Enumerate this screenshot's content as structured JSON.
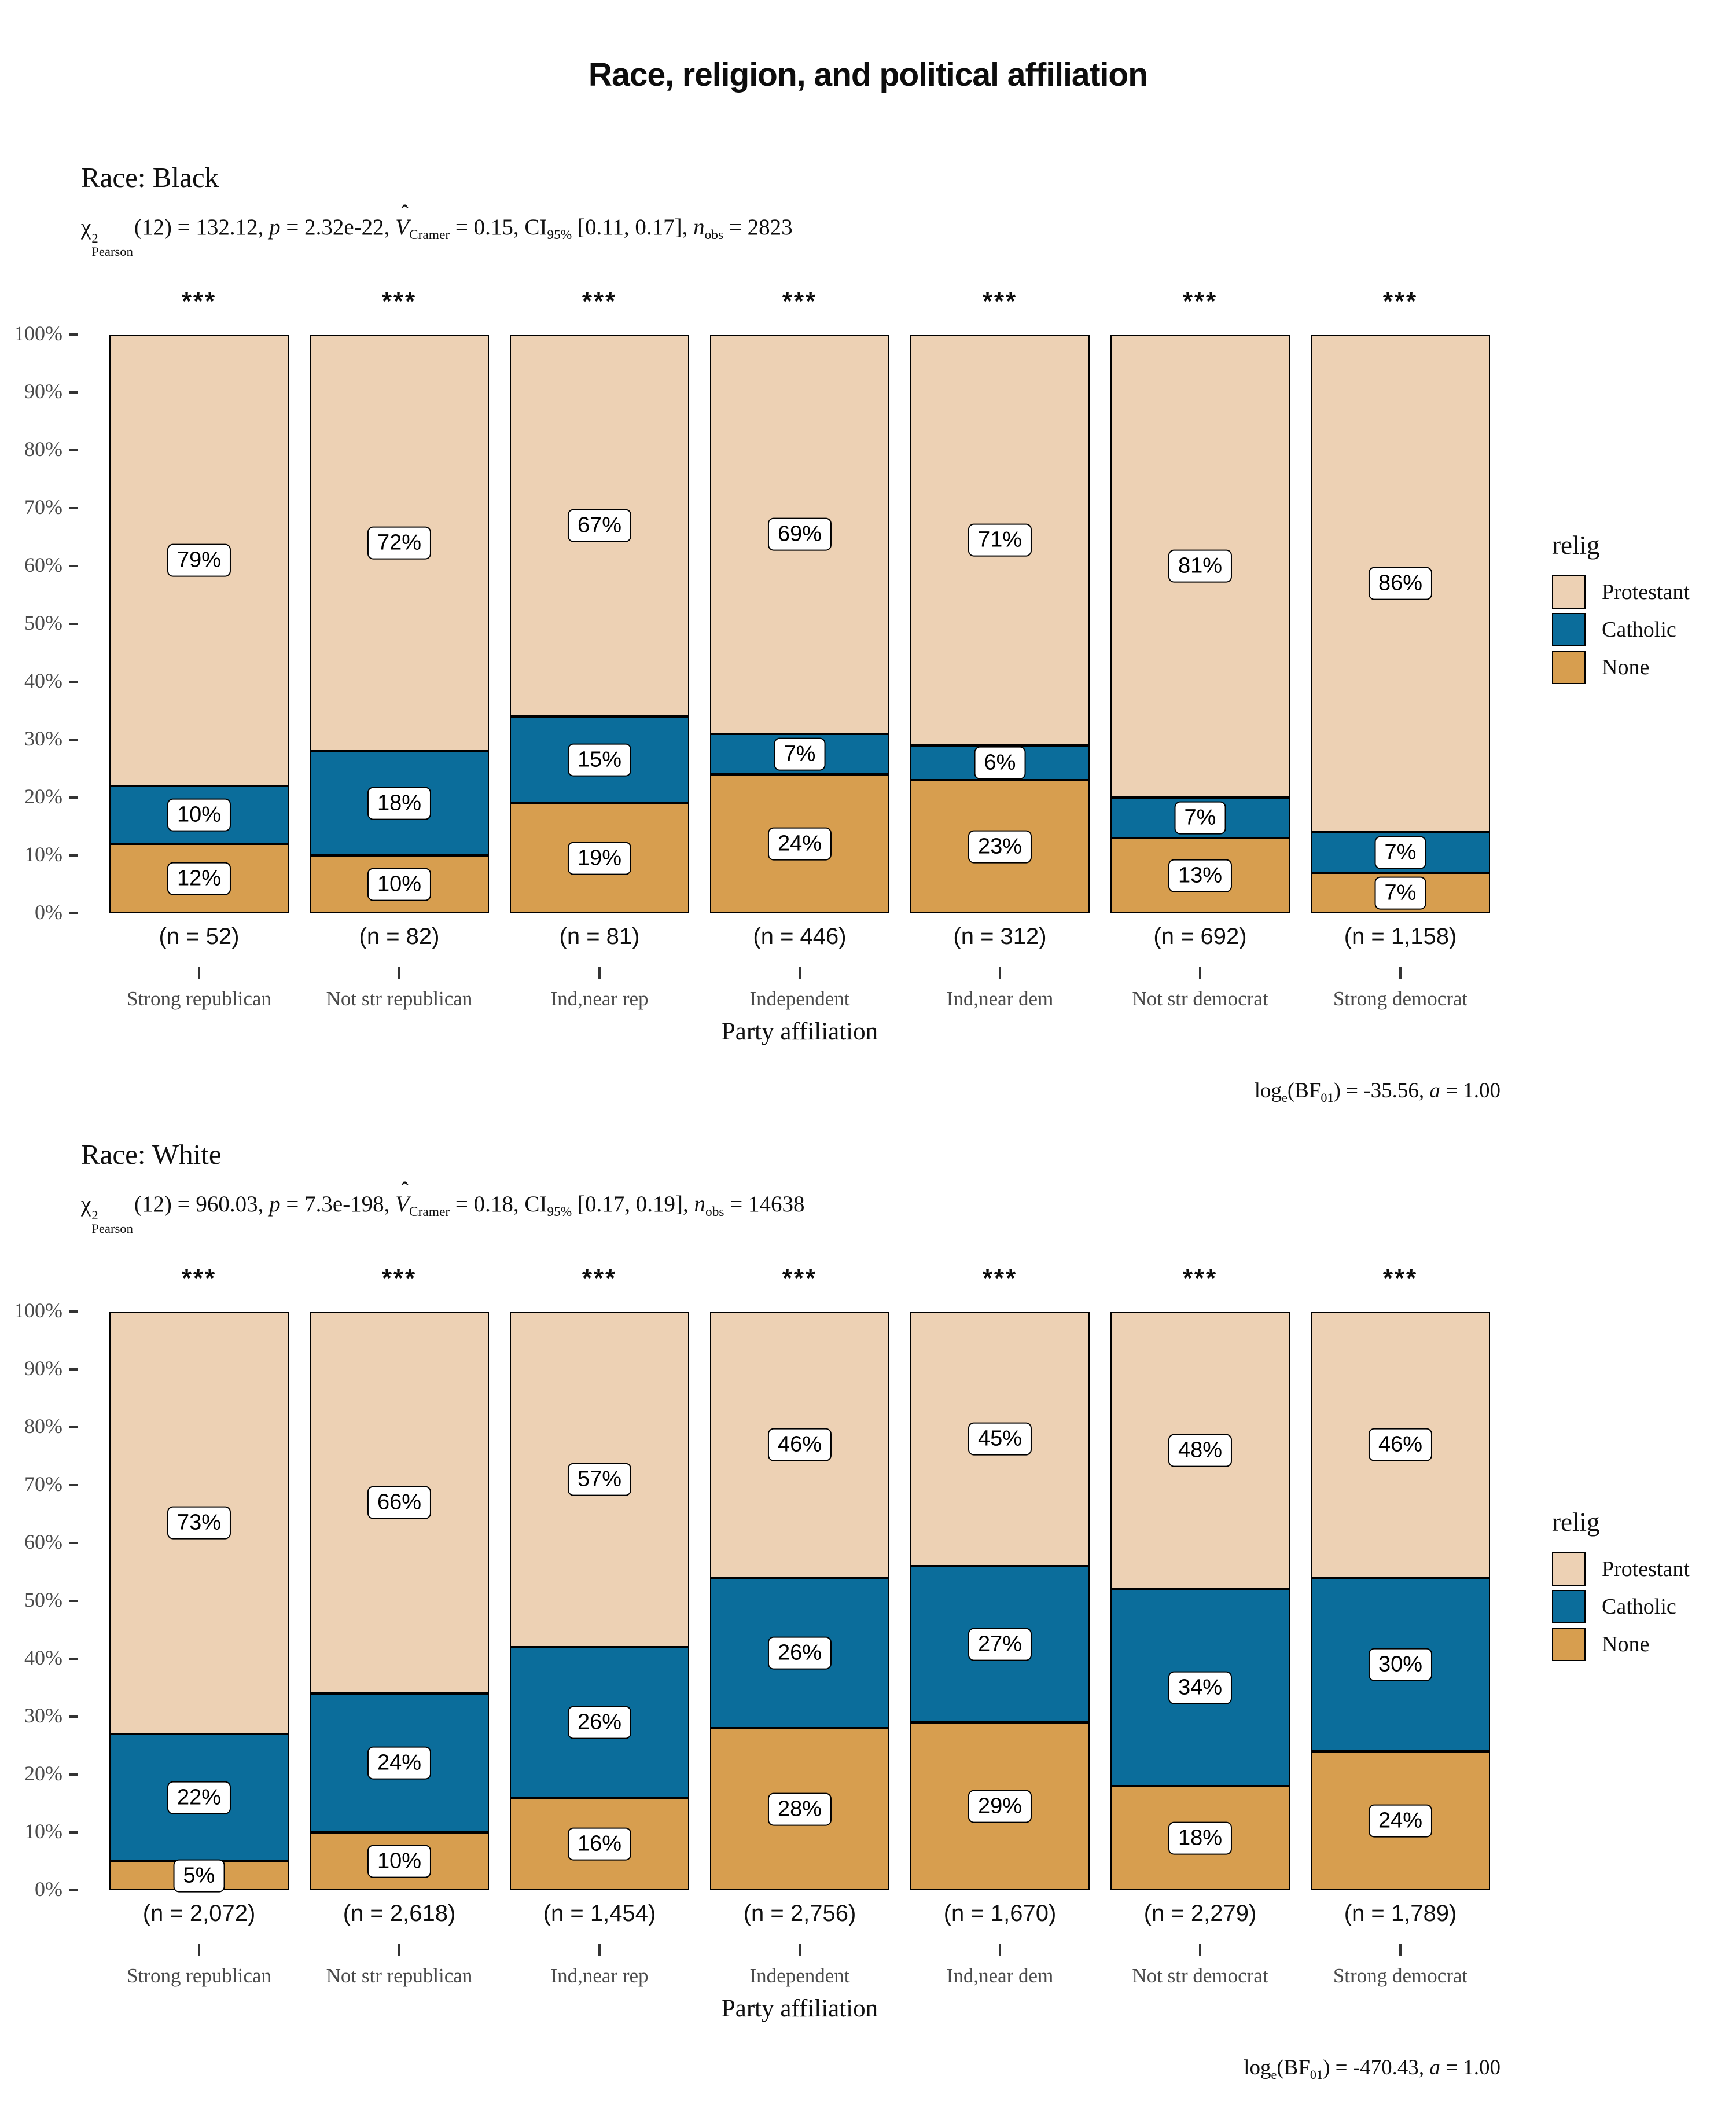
{
  "title": "Race, religion, and political affiliation",
  "y_ticks": [
    "0%",
    "10%",
    "20%",
    "30%",
    "40%",
    "50%",
    "60%",
    "70%",
    "80%",
    "90%",
    "100%"
  ],
  "x_axis_title": "Party affiliation",
  "legend": {
    "title": "relig",
    "items": [
      {
        "label": "Protestant",
        "color": "#EDD1B4"
      },
      {
        "label": "Catholic",
        "color": "#0B6D9B"
      },
      {
        "label": "None",
        "color": "#D79E4F"
      }
    ]
  },
  "chart_data": [
    {
      "type": "bar",
      "stacked": true,
      "percent_scale": true,
      "ylim": [
        0,
        100
      ],
      "grid": false,
      "legend_position": "right",
      "facet_title": "Race: Black",
      "xlabel": "Party affiliation",
      "ylabel": "",
      "categories": [
        "Strong republican",
        "Not str republican",
        "Ind,near rep",
        "Independent",
        "Ind,near dem",
        "Not str democrat",
        "Strong democrat"
      ],
      "n_labels": [
        "(n = 52)",
        "(n = 82)",
        "(n = 81)",
        "(n = 446)",
        "(n = 312)",
        "(n = 692)",
        "(n = 1,158)"
      ],
      "significance": [
        "***",
        "***",
        "***",
        "***",
        "***",
        "***",
        "***"
      ],
      "series": [
        {
          "name": "Protestant",
          "color": "#EDD1B4",
          "values": [
            79,
            72,
            67,
            69,
            71,
            81,
            86
          ]
        },
        {
          "name": "Catholic",
          "color": "#0B6D9B",
          "values": [
            10,
            18,
            15,
            7,
            6,
            7,
            7
          ]
        },
        {
          "name": "None",
          "color": "#D79E4F",
          "values": [
            12,
            10,
            19,
            24,
            23,
            13,
            7
          ]
        }
      ],
      "stats_segments": [
        {
          "t": "supsub",
          "base": "χ",
          "sup": "2",
          "sub": "Pearson"
        },
        {
          "t": "txt",
          "v": "(12) = 132.12, "
        },
        {
          "t": "i",
          "v": "p"
        },
        {
          "t": "txt",
          "v": " = 2.32e-22, "
        },
        {
          "t": "hat",
          "v": "V",
          "mark": "ˆ"
        },
        {
          "t": "sub",
          "v": "Cramer"
        },
        {
          "t": "txt",
          "v": " = 0.15, CI"
        },
        {
          "t": "sub",
          "v": "95%"
        },
        {
          "t": "txt",
          "v": " [0.11, 0.17], "
        },
        {
          "t": "i",
          "v": "n"
        },
        {
          "t": "sub",
          "v": "obs"
        },
        {
          "t": "txt",
          "v": " = 2823"
        }
      ],
      "caption_segments": [
        {
          "t": "txt",
          "v": "log"
        },
        {
          "t": "sub",
          "v": "e"
        },
        {
          "t": "txt",
          "v": "(BF"
        },
        {
          "t": "sub",
          "v": "01"
        },
        {
          "t": "txt",
          "v": ") = -35.56, "
        },
        {
          "t": "i",
          "v": "a"
        },
        {
          "t": "txt",
          "v": " = 1.00"
        }
      ]
    },
    {
      "type": "bar",
      "stacked": true,
      "percent_scale": true,
      "ylim": [
        0,
        100
      ],
      "grid": false,
      "legend_position": "right",
      "facet_title": "Race: White",
      "xlabel": "Party affiliation",
      "ylabel": "",
      "categories": [
        "Strong republican",
        "Not str republican",
        "Ind,near rep",
        "Independent",
        "Ind,near dem",
        "Not str democrat",
        "Strong democrat"
      ],
      "n_labels": [
        "(n = 2,072)",
        "(n = 2,618)",
        "(n = 1,454)",
        "(n = 2,756)",
        "(n = 1,670)",
        "(n = 2,279)",
        "(n = 1,789)"
      ],
      "significance": [
        "***",
        "***",
        "***",
        "***",
        "***",
        "***",
        "***"
      ],
      "series": [
        {
          "name": "Protestant",
          "color": "#EDD1B4",
          "values": [
            73,
            66,
            57,
            46,
            45,
            48,
            46
          ]
        },
        {
          "name": "Catholic",
          "color": "#0B6D9B",
          "values": [
            22,
            24,
            26,
            26,
            27,
            34,
            30
          ]
        },
        {
          "name": "None",
          "color": "#D79E4F",
          "values": [
            5,
            10,
            16,
            28,
            29,
            18,
            24
          ]
        }
      ],
      "stats_segments": [
        {
          "t": "supsub",
          "base": "χ",
          "sup": "2",
          "sub": "Pearson"
        },
        {
          "t": "txt",
          "v": "(12) = 960.03, "
        },
        {
          "t": "i",
          "v": "p"
        },
        {
          "t": "txt",
          "v": " = 7.3e-198, "
        },
        {
          "t": "hat",
          "v": "V",
          "mark": "ˆ"
        },
        {
          "t": "sub",
          "v": "Cramer"
        },
        {
          "t": "txt",
          "v": " = 0.18, CI"
        },
        {
          "t": "sub",
          "v": "95%"
        },
        {
          "t": "txt",
          "v": " [0.17, 0.19], "
        },
        {
          "t": "i",
          "v": "n"
        },
        {
          "t": "sub",
          "v": "obs"
        },
        {
          "t": "txt",
          "v": " = 14638"
        }
      ],
      "caption_segments": [
        {
          "t": "txt",
          "v": "log"
        },
        {
          "t": "sub",
          "v": "e"
        },
        {
          "t": "txt",
          "v": "(BF"
        },
        {
          "t": "sub",
          "v": "01"
        },
        {
          "t": "txt",
          "v": ") = -470.43, "
        },
        {
          "t": "i",
          "v": "a"
        },
        {
          "t": "txt",
          "v": " = 1.00"
        }
      ]
    }
  ]
}
